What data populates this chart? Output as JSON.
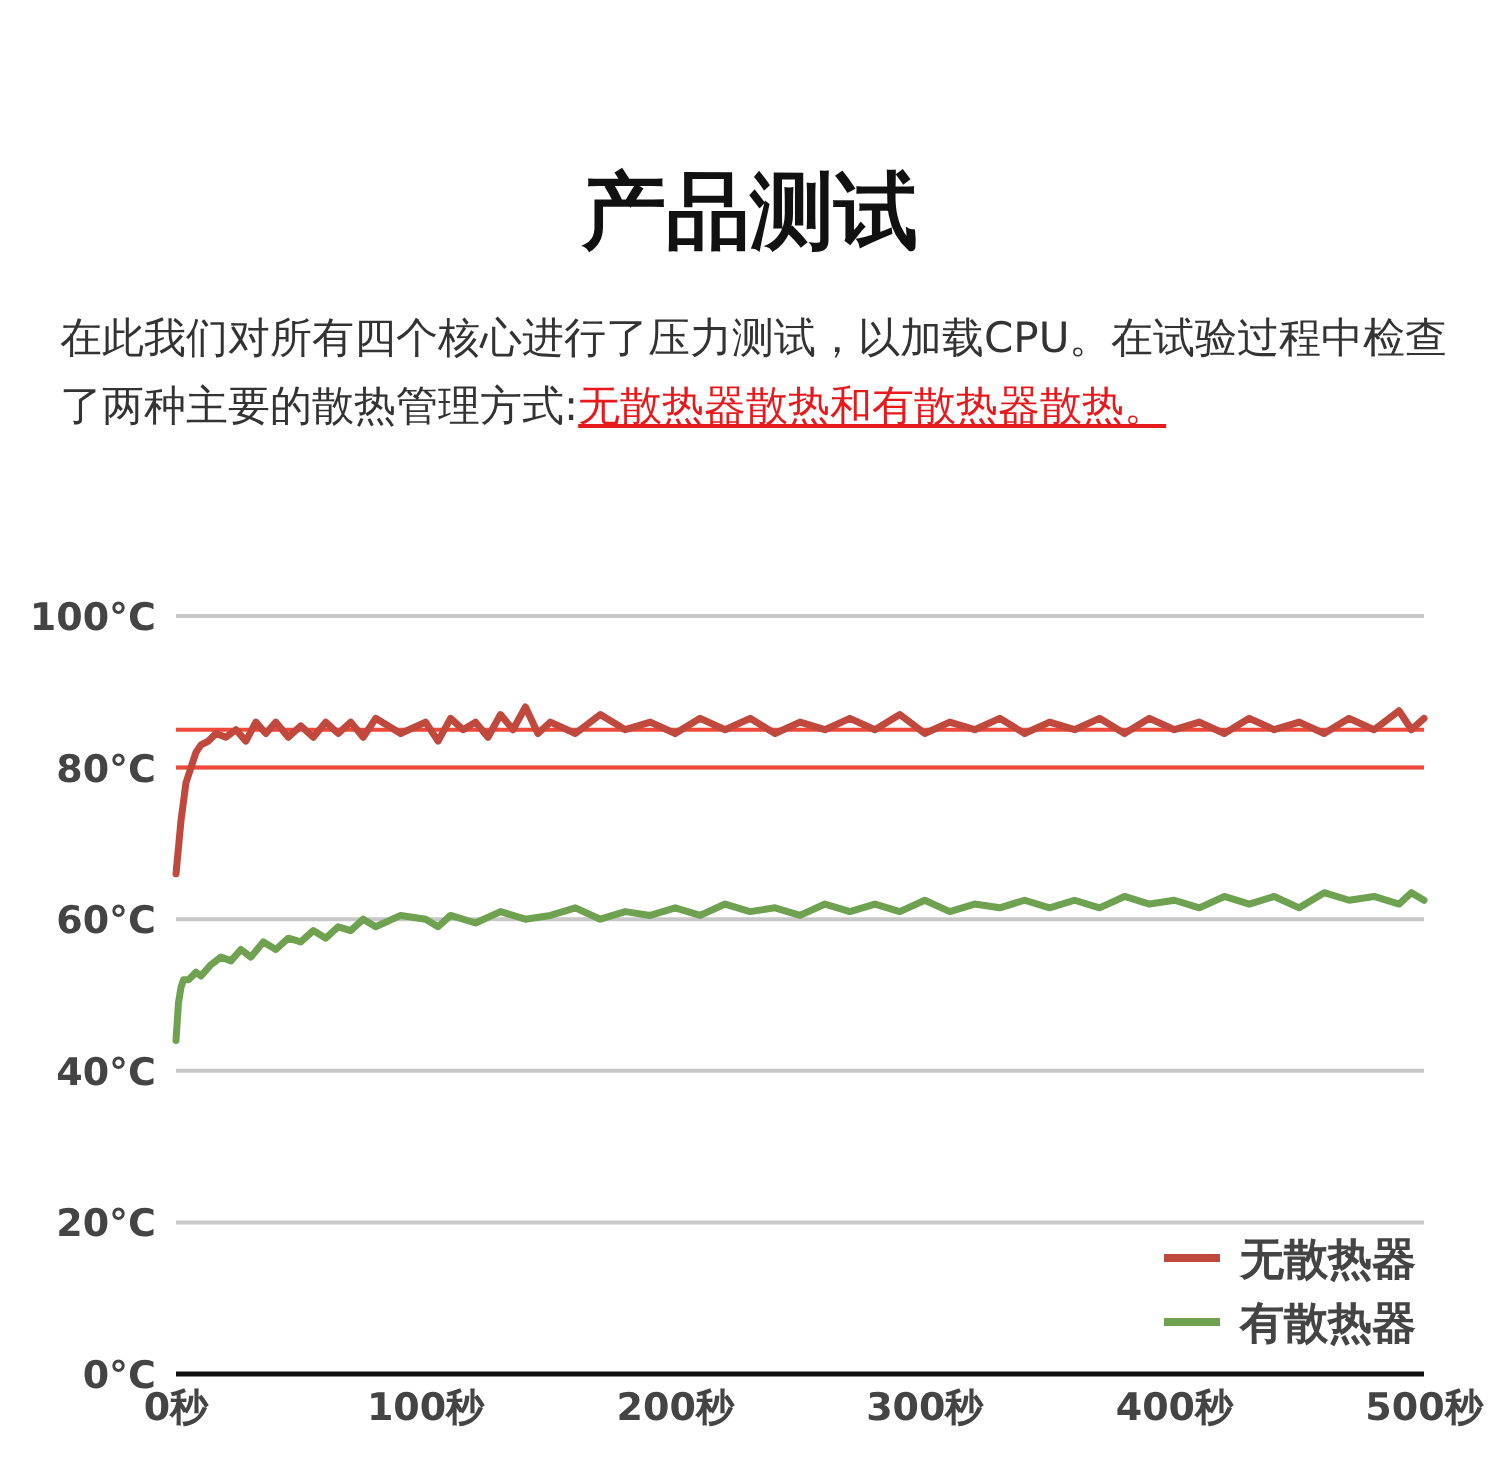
{
  "chart_data": {
    "type": "line",
    "title": "产品测试",
    "subtitle": "在此我们对所有四个核心进行了压力测试，以加载CPU。在试验过程中检查了两种主要的散热管理方式:",
    "annotations": [
      "无散热器散热和有散热器散热。"
    ],
    "xlim": [
      0,
      500
    ],
    "ylim": [
      0,
      100
    ],
    "xticks": [
      {
        "value": 0,
        "label": "0秒"
      },
      {
        "value": 100,
        "label": "100秒"
      },
      {
        "value": 200,
        "label": "200秒"
      },
      {
        "value": 300,
        "label": "300秒"
      },
      {
        "value": 400,
        "label": "400秒"
      },
      {
        "value": 500,
        "label": "500秒"
      }
    ],
    "yticks": [
      {
        "value": 0,
        "label": "0°C"
      },
      {
        "value": 20,
        "label": "20°C"
      },
      {
        "value": 40,
        "label": "40°C"
      },
      {
        "value": 60,
        "label": "60°C"
      },
      {
        "value": 80,
        "label": "80°C"
      },
      {
        "value": 100,
        "label": "100°C"
      }
    ],
    "grid": "y",
    "legend": "bottom right",
    "ref_lines": [
      {
        "axis": "y",
        "value": 85,
        "color": "#f0493a"
      },
      {
        "axis": "y",
        "value": 80,
        "color": "#f0493a"
      }
    ],
    "series": [
      {
        "name": "无散热器",
        "color": "#c0483c",
        "x": [
          0,
          2,
          4,
          6,
          8,
          10,
          13,
          16,
          20,
          24,
          28,
          32,
          36,
          40,
          45,
          50,
          55,
          60,
          65,
          70,
          75,
          80,
          90,
          100,
          105,
          110,
          115,
          120,
          125,
          130,
          135,
          140,
          145,
          150,
          160,
          170,
          180,
          190,
          200,
          210,
          220,
          230,
          240,
          250,
          260,
          270,
          280,
          290,
          300,
          310,
          320,
          330,
          340,
          350,
          360,
          370,
          380,
          390,
          400,
          410,
          420,
          430,
          440,
          450,
          460,
          470,
          480,
          490,
          495,
          500
        ],
        "values": [
          66,
          73,
          78,
          80,
          82,
          83,
          83.5,
          84.5,
          84,
          85,
          83.5,
          86,
          84.5,
          86,
          84,
          85.5,
          84,
          86,
          84.5,
          86,
          84,
          86.5,
          84.5,
          86,
          83.5,
          86.5,
          85,
          86,
          84,
          87,
          85,
          88,
          84.5,
          86,
          84.5,
          87,
          85,
          86,
          84.5,
          86.5,
          85,
          86.5,
          84.5,
          86,
          85,
          86.5,
          85,
          87,
          84.5,
          86,
          85,
          86.5,
          84.5,
          86,
          85,
          86.5,
          84.5,
          86.5,
          85,
          86,
          84.5,
          86.5,
          85,
          86,
          84.5,
          86.5,
          85,
          87.5,
          85,
          86.5
        ]
      },
      {
        "name": "有散热器",
        "color": "#6fa250",
        "x": [
          0,
          1,
          2,
          3,
          5,
          8,
          10,
          14,
          18,
          22,
          26,
          30,
          35,
          40,
          45,
          50,
          55,
          60,
          65,
          70,
          75,
          80,
          90,
          100,
          105,
          110,
          120,
          130,
          140,
          150,
          160,
          170,
          180,
          190,
          200,
          210,
          220,
          230,
          240,
          250,
          260,
          270,
          280,
          290,
          300,
          310,
          320,
          330,
          340,
          350,
          360,
          370,
          380,
          390,
          400,
          410,
          420,
          430,
          440,
          450,
          460,
          470,
          480,
          490,
          495,
          500
        ],
        "values": [
          44,
          49,
          51,
          52,
          52,
          53,
          52.5,
          54,
          55,
          54.5,
          56,
          55,
          57,
          56,
          57.5,
          57,
          58.5,
          57.5,
          59,
          58.5,
          60,
          59,
          60.5,
          60,
          59,
          60.5,
          59.5,
          61,
          60,
          60.5,
          61.5,
          60,
          61,
          60.5,
          61.5,
          60.5,
          62,
          61,
          61.5,
          60.5,
          62,
          61,
          62,
          61,
          62.5,
          61,
          62,
          61.5,
          62.5,
          61.5,
          62.5,
          61.5,
          63,
          62,
          62.5,
          61.5,
          63,
          62,
          63,
          61.5,
          63.5,
          62.5,
          63,
          62,
          63.5,
          62.5
        ]
      }
    ]
  }
}
